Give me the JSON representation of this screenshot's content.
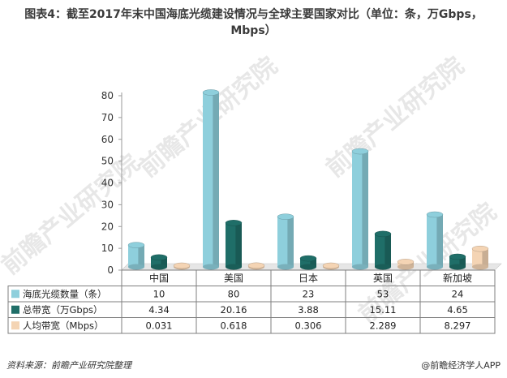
{
  "title": "图表4：截至2017年末中国海底光缆建设情况与全球主要国家对比（单位：条，万Gbps，Mbps）",
  "watermark": "前瞻产业研究院",
  "footer": {
    "source": "资料来源：前瞻产业研究院整理",
    "brand": "@前瞻经济学人APP"
  },
  "colors": {
    "series1": "#8ecfdc",
    "series2": "#1f6e68",
    "series3": "#f4d4b4"
  },
  "chart_data": {
    "type": "bar",
    "categories": [
      "中国",
      "美国",
      "日本",
      "英国",
      "新加坡"
    ],
    "ylim": [
      0,
      80
    ],
    "yticks": [
      "0",
      "10",
      "20",
      "30",
      "40",
      "50",
      "60",
      "70",
      "80"
    ],
    "series": [
      {
        "name": "海底光缆数量（条）",
        "values": [
          10,
          80,
          23,
          53,
          24
        ],
        "labels": [
          "10",
          "80",
          "23",
          "53",
          "24"
        ]
      },
      {
        "name": "总带宽（万Gbps）",
        "values": [
          4.34,
          20.16,
          3.88,
          15.11,
          4.65
        ],
        "labels": [
          "4.34",
          "20.16",
          "3.88",
          "15.11",
          "4.65"
        ]
      },
      {
        "name": "人均带宽（Mbps）",
        "values": [
          0.031,
          0.618,
          0.306,
          2.289,
          8.297
        ],
        "labels": [
          "0.031",
          "0.618",
          "0.306",
          "2.289",
          "8.297"
        ]
      }
    ],
    "legend_placement": "table-below",
    "grid": false
  }
}
